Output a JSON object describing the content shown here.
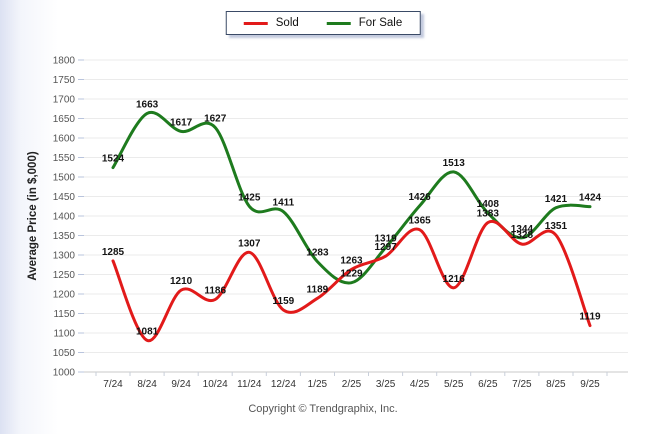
{
  "legend": {
    "items": [
      {
        "label": "Sold",
        "color": "#e21a1a"
      },
      {
        "label": "For Sale",
        "color": "#1e7b1e"
      }
    ]
  },
  "footer": "Copyright © Trendgraphix, Inc.",
  "chart_data": {
    "type": "line",
    "smooth": true,
    "categories": [
      "7/24",
      "8/24",
      "9/24",
      "10/24",
      "11/24",
      "12/24",
      "1/25",
      "2/25",
      "3/25",
      "4/25",
      "5/25",
      "6/25",
      "7/25",
      "8/25",
      "9/25"
    ],
    "series": [
      {
        "name": "Sold",
        "color": "#e21a1a",
        "values": [
          1285,
          1081,
          1210,
          1186,
          1307,
          1159,
          1189,
          1263,
          1297,
          1365,
          1216,
          1383,
          1328,
          1351,
          1119
        ]
      },
      {
        "name": "For Sale",
        "color": "#1e7b1e",
        "values": [
          1524,
          1663,
          1617,
          1627,
          1425,
          1411,
          1283,
          1229,
          1319,
          1426,
          1513,
          1408,
          1344,
          1421,
          1424
        ]
      }
    ],
    "title": "",
    "xlabel": "",
    "ylabel": "Average Price (in $,000)",
    "ylim": [
      1000,
      1800
    ],
    "ytick_step": 50,
    "grid": "horizontal",
    "legend_position": "top-center",
    "data_labels": true
  }
}
